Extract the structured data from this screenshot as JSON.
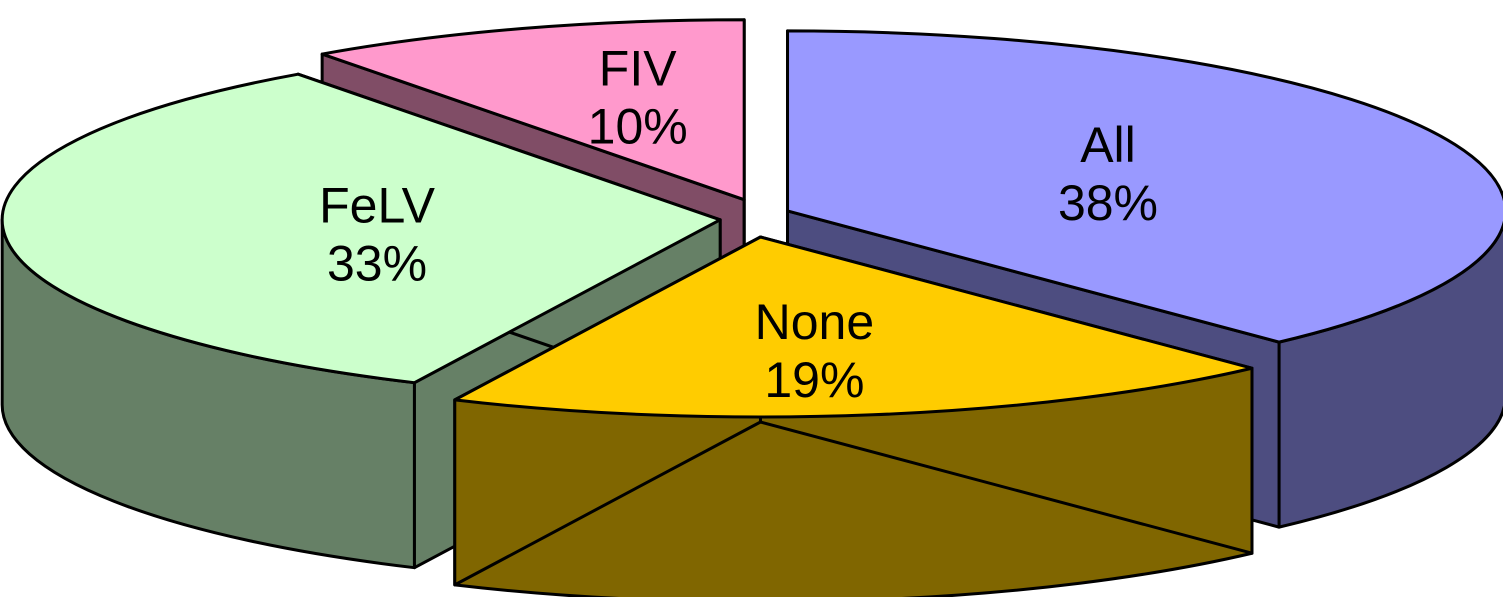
{
  "chart_data": {
    "type": "pie",
    "three_d": true,
    "exploded": true,
    "slices": [
      {
        "name": "All",
        "label": "All",
        "percent_label": "38%",
        "value": 38,
        "top_color": "#9999ff",
        "side_color": "#4d4d80"
      },
      {
        "name": "None",
        "label": "None",
        "percent_label": "19%",
        "value": 19,
        "top_color": "#ffcc00",
        "side_color": "#806600"
      },
      {
        "name": "FeLV",
        "label": "FeLV",
        "percent_label": "33%",
        "value": 33,
        "top_color": "#ccffcc",
        "side_color": "#668066"
      },
      {
        "name": "FIV",
        "label": "FIV",
        "percent_label": "10%",
        "value": 10,
        "top_color": "#ff99cc",
        "side_color": "#804d66"
      }
    ],
    "title": "",
    "legend": "none"
  }
}
